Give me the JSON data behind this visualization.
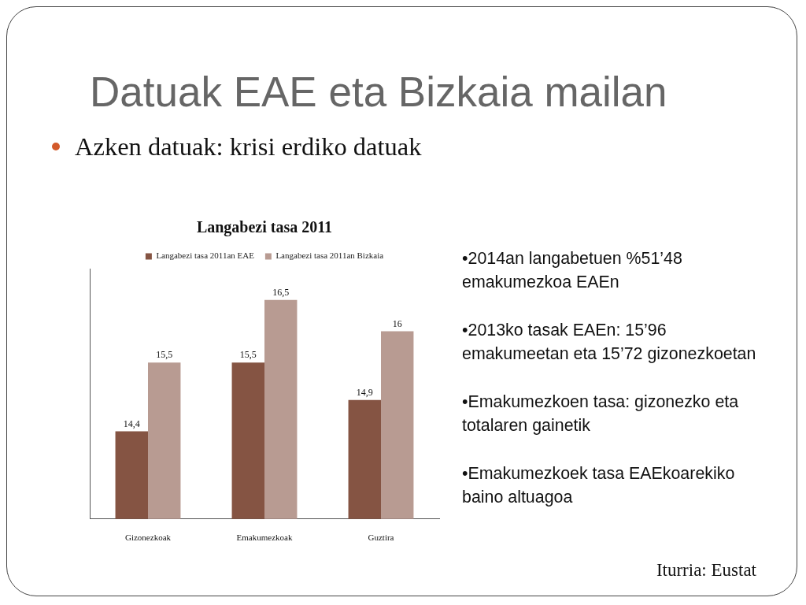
{
  "chart_data": {
    "type": "bar",
    "title": "Datuak EAE eta Bizkaia mailan",
    "subtitle": "Azken datuak: krisi erdiko datuak",
    "annotations": [
      "Langabezi tasa 2011",
      "•2014an langabetuen %51’48 emakumezkoa EAEn",
      "•2013ko tasak EAEn: 15’96 emakumeetan eta 15’72 gizonezkoetan",
      "•Emakumezkoen tasa: gizonezko eta totalaren gainetik",
      "•Emakumezkoek tasa EAEkoarekiko baino altuagoa",
      "Iturria: Eustat"
    ],
    "categories": [
      "Gizonezkoak",
      "Emakumezkoak",
      "Guztira"
    ],
    "series": [
      {
        "name": "Langabezi tasa 2011an EAE",
        "color": "#855443",
        "values": [
          14.4,
          15.5,
          14.9
        ],
        "value_labels": [
          "14,4",
          "15,5",
          "14,9"
        ]
      },
      {
        "name": "Langabezi tasa 2011an Bizkaia",
        "color": "#b89b92",
        "values": [
          15.5,
          16.5,
          16
        ],
        "value_labels": [
          "15,5",
          "16,5",
          "16"
        ]
      }
    ],
    "ylim": [
      13,
      17
    ],
    "tick_labels": "x",
    "legend": "top",
    "grid": false
  }
}
